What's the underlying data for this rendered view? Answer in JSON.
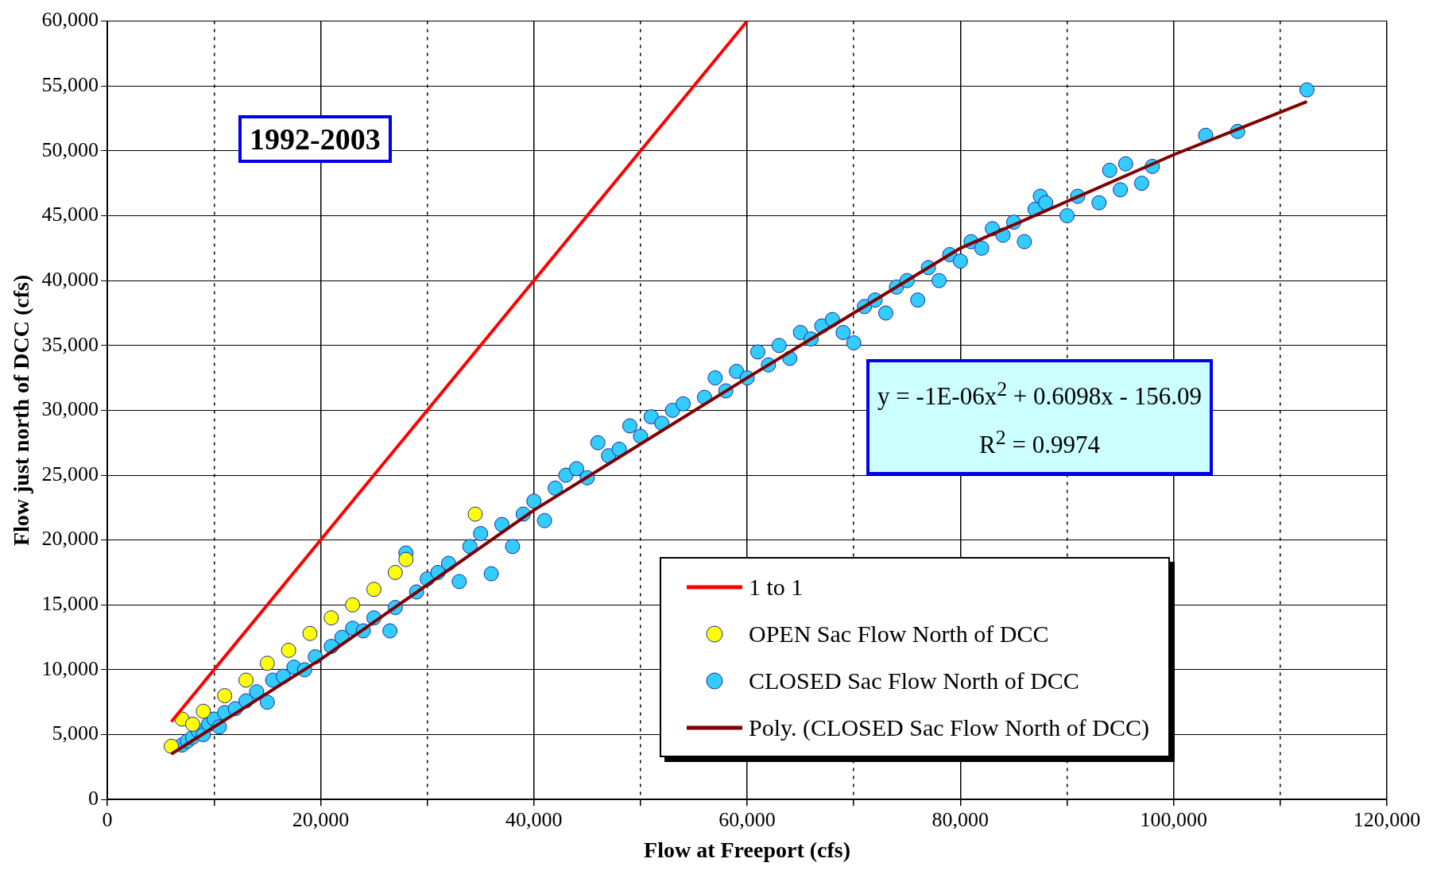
{
  "chart_data": {
    "type": "scatter",
    "xlabel": "Flow at Freeport (cfs)",
    "ylabel": "Flow just north of DCC (cfs)",
    "xlim": [
      0,
      120000
    ],
    "xticks": [
      0,
      {
        "value": 10000,
        "label": null
      },
      {
        "value": 20000,
        "label": "20,000"
      },
      {
        "value": 30000,
        "label": null
      },
      {
        "value": 40000,
        "label": "40,000"
      },
      {
        "value": 50000,
        "label": null
      },
      {
        "value": 60000,
        "label": "60,000"
      },
      {
        "value": 70000,
        "label": null
      },
      {
        "value": 80000,
        "label": "80,000"
      },
      {
        "value": 90000,
        "label": null
      },
      {
        "value": 100000,
        "label": "100,000"
      },
      {
        "value": 110000,
        "label": null
      },
      {
        "value": 120000,
        "label": "120,000"
      }
    ],
    "ylim": [
      0,
      60000
    ],
    "yticks": [
      0,
      {
        "value": 5000,
        "label": "5,000"
      },
      {
        "value": 10000,
        "label": "10,000"
      },
      {
        "value": 15000,
        "label": "15,000"
      },
      {
        "value": 20000,
        "label": "20,000"
      },
      {
        "value": 25000,
        "label": "25,000"
      },
      {
        "value": 30000,
        "label": "30,000"
      },
      {
        "value": 35000,
        "label": "35,000"
      },
      {
        "value": 40000,
        "label": "40,000"
      },
      {
        "value": 45000,
        "label": "45,000"
      },
      {
        "value": 50000,
        "label": "50,000"
      },
      {
        "value": 55000,
        "label": "55,000"
      },
      {
        "value": 60000,
        "label": "60,000"
      }
    ],
    "grid": true,
    "legend": "bottom right",
    "annotations": [
      "1992-2003",
      "y = -1E-06x$^{2}$ + 0.6098x - 156.09",
      "R$^{2}$ = 0.9974"
    ],
    "series": [
      {
        "name": "1 to 1",
        "type": "line",
        "marker": "none",
        "color": "#ff0000",
        "x": [
          6000,
          60000
        ],
        "values": [
          6000,
          60000
        ]
      },
      {
        "name": "OPEN Sac Flow North of DCC",
        "marker": "circle",
        "color": "#ffff00",
        "x": [
          6000,
          7000,
          8000,
          9000,
          11000,
          13000,
          15000,
          17000,
          19000,
          21000,
          23000,
          25000,
          27000,
          28000,
          34500
        ],
        "values": [
          4100,
          6200,
          5800,
          6800,
          8000,
          9200,
          10500,
          11500,
          12800,
          14000,
          15000,
          16200,
          17500,
          18500,
          22000
        ]
      },
      {
        "name": "CLOSED Sac Flow North of DCC",
        "marker": "circle",
        "color": "#33ccff",
        "x": [
          7000,
          7500,
          8000,
          8500,
          9000,
          9500,
          10000,
          10500,
          11000,
          12000,
          13000,
          14000,
          15000,
          15500,
          16500,
          17500,
          18500,
          19500,
          21000,
          22000,
          23000,
          24000,
          25000,
          26500,
          27000,
          28000,
          29000,
          30000,
          31000,
          32000,
          33000,
          34000,
          35000,
          36000,
          37000,
          38000,
          39000,
          40000,
          41000,
          42000,
          43000,
          44000,
          45000,
          46000,
          47000,
          48000,
          49000,
          50000,
          51000,
          52000,
          53000,
          54000,
          56000,
          57000,
          58000,
          59000,
          60000,
          61000,
          62000,
          63000,
          64000,
          65000,
          66000,
          67000,
          68000,
          69000,
          70000,
          71000,
          72000,
          73000,
          74000,
          75000,
          76000,
          77000,
          78000,
          79000,
          80000,
          81000,
          82000,
          83000,
          84000,
          85000,
          86000,
          87000,
          87500,
          88000,
          90000,
          91000,
          93000,
          94000,
          95000,
          95500,
          97000,
          98000,
          103000,
          106000,
          112500
        ],
        "values": [
          4200,
          4500,
          4800,
          5300,
          5000,
          5800,
          6200,
          5600,
          6700,
          7000,
          7600,
          8300,
          7500,
          9200,
          9500,
          10200,
          10000,
          11000,
          11800,
          12500,
          13200,
          13000,
          14000,
          13000,
          14800,
          19000,
          16000,
          17000,
          17500,
          18200,
          16800,
          19500,
          20500,
          17400,
          21200,
          19500,
          22000,
          23000,
          21500,
          24000,
          25000,
          25500,
          24800,
          27500,
          26500,
          27000,
          28800,
          28000,
          29500,
          29000,
          30000,
          30500,
          31000,
          32500,
          31500,
          33000,
          32500,
          34500,
          33500,
          35000,
          34000,
          36000,
          35500,
          36500,
          37000,
          36000,
          35200,
          38000,
          38500,
          37500,
          39500,
          40000,
          38500,
          41000,
          40000,
          42000,
          41500,
          43000,
          42500,
          44000,
          43500,
          44500,
          43000,
          45500,
          46500,
          46000,
          45000,
          46500,
          46000,
          48500,
          47000,
          49000,
          47500,
          48800,
          51200,
          51500,
          54700
        ]
      },
      {
        "name": "Poly. (CLOSED Sac Flow North of DCC)",
        "type": "line",
        "marker": "none",
        "color": "#800000",
        "x": [
          6000,
          20000,
          40000,
          60000,
          80000,
          100000,
          112500
        ],
        "values": [
          3500,
          10800,
          22300,
          32500,
          42500,
          49700,
          53800
        ]
      }
    ]
  }
}
